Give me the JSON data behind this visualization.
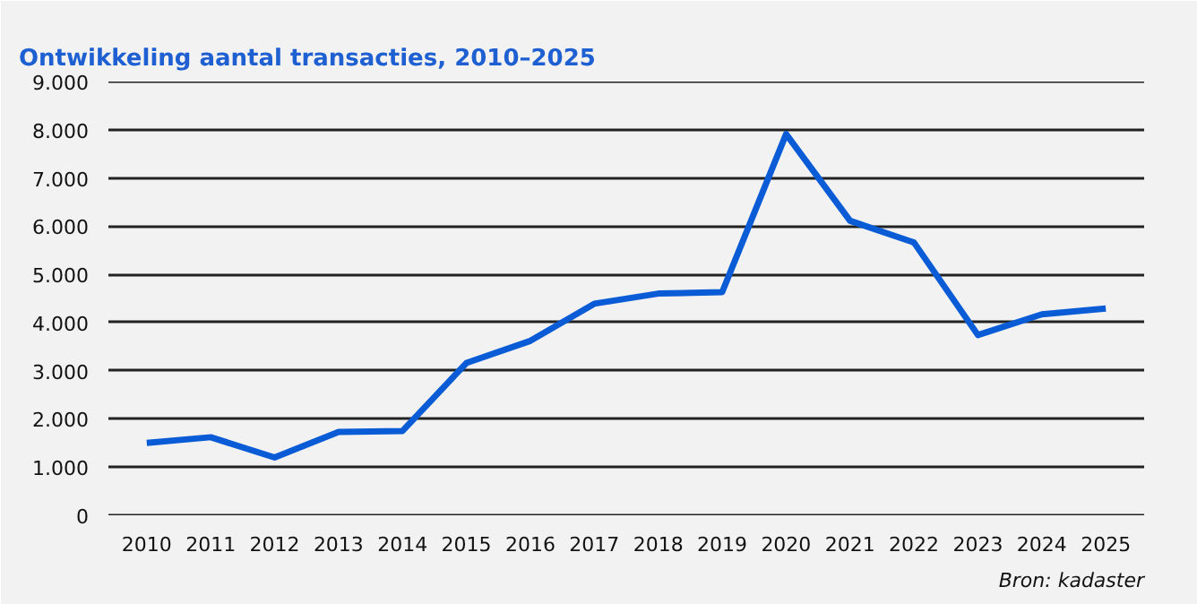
{
  "chart_data": {
    "type": "line",
    "title": "Ontwikkeling aantal transacties, 2010–2025",
    "categories": [
      "2010",
      "2011",
      "2012",
      "2013",
      "2014",
      "2015",
      "2016",
      "2017",
      "2018",
      "2019",
      "2020",
      "2021",
      "2022",
      "2023",
      "2024",
      "2025"
    ],
    "series": [
      {
        "color": "#0a5cd6",
        "values": [
          1500,
          1620,
          1200,
          1730,
          1750,
          3160,
          3620,
          4390,
          4600,
          4630,
          7910,
          6110,
          5660,
          3740,
          4170,
          4290
        ]
      }
    ],
    "ylim": [
      0,
      9000
    ],
    "yticks": [
      0,
      {
        "value": 1000,
        "label": "1.000"
      },
      {
        "value": 2000,
        "label": "2.000"
      },
      {
        "value": 3000,
        "label": "3.000"
      },
      {
        "value": 4000,
        "label": "4.000"
      },
      {
        "value": 5000,
        "label": "5.000"
      },
      {
        "value": 6000,
        "label": "6.000"
      },
      {
        "value": 7000,
        "label": "7.000"
      },
      {
        "value": 8000,
        "label": "8.000"
      },
      {
        "value": 9000,
        "label": "9.000"
      }
    ],
    "grid": "y",
    "marker": "none",
    "line_style": "solid",
    "annotations": [
      "Bron: kadaster"
    ]
  }
}
